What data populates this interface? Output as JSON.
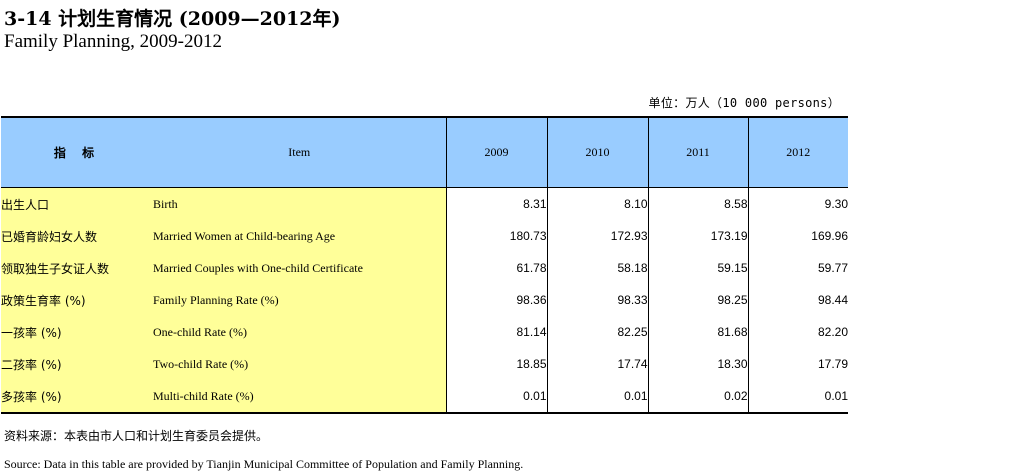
{
  "title": {
    "cn": "3-14  计划生育情况 (2009—2012年)",
    "en": "Family Planning, 2009-2012"
  },
  "unit": "单位：万人（10 000 persons）",
  "table": {
    "headers": {
      "item_cn": "指  标",
      "item_en": "Item",
      "years": [
        "2009",
        "2010",
        "2011",
        "2012"
      ]
    },
    "rows": [
      {
        "cn": "出生人口",
        "en": "Birth",
        "values": [
          "8.31",
          "8.10",
          "8.58",
          "9.30"
        ]
      },
      {
        "cn": "已婚育龄妇女人数",
        "en": "Married Women at Child-bearing Age",
        "values": [
          "180.73",
          "172.93",
          "173.19",
          "169.96"
        ]
      },
      {
        "cn": "领取独生子女证人数",
        "en": "Married Couples with One-child Certificate",
        "values": [
          "61.78",
          "58.18",
          "59.15",
          "59.77"
        ]
      },
      {
        "cn": "政策生育率 (%)",
        "en": "Family Planning Rate (%)",
        "values": [
          "98.36",
          "98.33",
          "98.25",
          "98.44"
        ]
      },
      {
        "cn": "一孩率 (%)",
        "en": "One-child Rate (%)",
        "values": [
          "81.14",
          "82.25",
          "81.68",
          "82.20"
        ]
      },
      {
        "cn": "二孩率 (%)",
        "en": "Two-child Rate (%)",
        "values": [
          "18.85",
          "17.74",
          "18.30",
          "17.79"
        ]
      },
      {
        "cn": "多孩率 (%)",
        "en": "Multi-child Rate (%)",
        "values": [
          "0.01",
          "0.01",
          "0.02",
          "0.01"
        ]
      }
    ]
  },
  "source": {
    "cn": "资料来源：本表由市人口和计划生育委员会提供。",
    "en": "Source: Data in this table are provided by Tianjin Municipal Committee of Population and Family Planning."
  },
  "colors": {
    "header_bg": "#99ccff",
    "label_bg": "#ffff99"
  }
}
